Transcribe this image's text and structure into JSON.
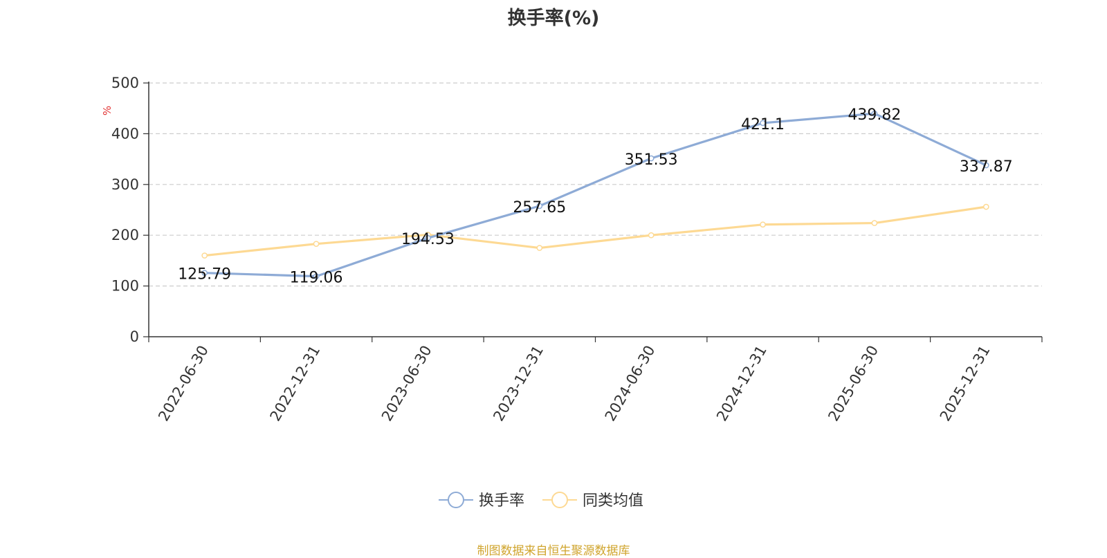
{
  "colors": {
    "series_primary": "#8eabd6",
    "series_secondary": "#fdd993",
    "axis_unit": "#e23232",
    "source": "#d0a52e",
    "text": "#333333",
    "grid": "#cccccc"
  },
  "source_note": "制图数据来自恒生聚源数据库",
  "chart_data": {
    "type": "line",
    "title": "换手率(%)",
    "y_unit": "%",
    "ylim": [
      0,
      500
    ],
    "y_ticks": [
      0,
      100,
      200,
      300,
      400,
      500
    ],
    "grid": true,
    "legend_position": "bottom-center",
    "x": [
      "2022-06-30",
      "2022-12-31",
      "2023-06-30",
      "2023-12-31",
      "2024-06-30",
      "2024-12-31",
      "2025-06-30",
      "2025-12-31"
    ],
    "series": [
      {
        "name": "换手率",
        "values": [
          125.79,
          119.06,
          194.53,
          257.65,
          351.53,
          421.1,
          439.82,
          337.87
        ],
        "labels": [
          "125.79",
          "119.06",
          "194.53",
          "257.65",
          "351.53",
          "421.1",
          "439.82",
          "337.87"
        ]
      },
      {
        "name": "同类均值",
        "values": [
          160,
          183,
          201,
          175,
          200,
          221,
          224,
          256
        ]
      }
    ]
  }
}
